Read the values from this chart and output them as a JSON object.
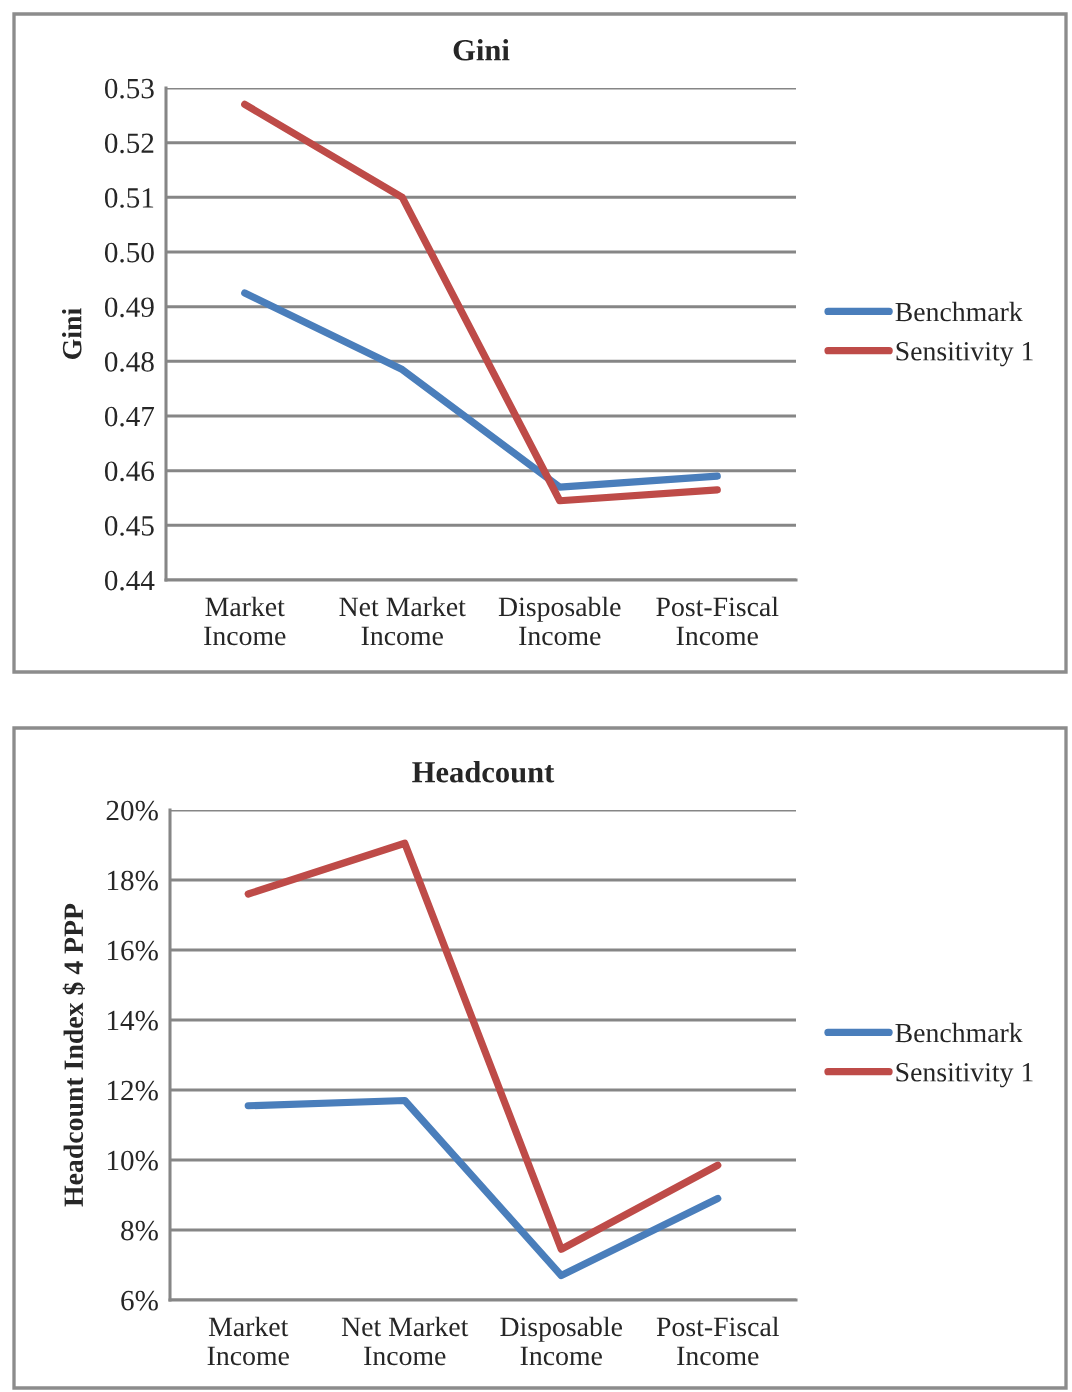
{
  "chart_data": [
    {
      "type": "line",
      "title": "Gini",
      "ylabel": "Gini",
      "categories": [
        "Market\nIncome",
        "Net Market\nIncome",
        "Disposable\nIncome",
        "Post-Fiscal\nIncome"
      ],
      "series": [
        {
          "name": "Benchmark",
          "color": "#4a7ebb",
          "values": [
            0.4925,
            0.4785,
            0.457,
            0.459
          ]
        },
        {
          "name": "Sensitivity 1",
          "color": "#be4b48",
          "values": [
            0.527,
            0.51,
            0.4545,
            0.4565
          ]
        }
      ],
      "ylim": [
        0.44,
        0.53
      ],
      "yticks": [
        {
          "value": 0.44,
          "label": "0.44"
        },
        {
          "value": 0.45,
          "label": "0.45"
        },
        {
          "value": 0.46,
          "label": "0.46"
        },
        {
          "value": 0.47,
          "label": "0.47"
        },
        {
          "value": 0.48,
          "label": "0.48"
        },
        {
          "value": 0.49,
          "label": "0.49"
        },
        {
          "value": 0.5,
          "label": "0.50"
        },
        {
          "value": 0.51,
          "label": "0.51"
        },
        {
          "value": 0.52,
          "label": "0.52"
        },
        {
          "value": 0.53,
          "label": "0.53"
        }
      ],
      "grid": "y",
      "legend": "right",
      "marker": "none",
      "line_style": "solid"
    },
    {
      "type": "line",
      "title": "Headcount",
      "ylabel": "Headcount Index $ 4 PPP",
      "categories": [
        "Market\nIncome",
        "Net Market\nIncome",
        "Disposable\nIncome",
        "Post-Fiscal\nIncome"
      ],
      "series": [
        {
          "name": "Benchmark",
          "color": "#4a7ebb",
          "values": [
            11.55,
            11.7,
            6.7,
            8.9
          ]
        },
        {
          "name": "Sensitivity 1",
          "color": "#be4b48",
          "values": [
            17.6,
            19.05,
            7.45,
            9.85
          ]
        }
      ],
      "ylim": [
        6,
        20
      ],
      "yticks": [
        {
          "value": 6,
          "label": "6%"
        },
        {
          "value": 8,
          "label": "8%"
        },
        {
          "value": 10,
          "label": "10%"
        },
        {
          "value": 12,
          "label": "12%"
        },
        {
          "value": 14,
          "label": "14%"
        },
        {
          "value": 16,
          "label": "16%"
        },
        {
          "value": 18,
          "label": "18%"
        },
        {
          "value": 20,
          "label": "20%"
        }
      ],
      "grid": "y",
      "legend": "right",
      "marker": "none",
      "line_style": "solid"
    }
  ]
}
